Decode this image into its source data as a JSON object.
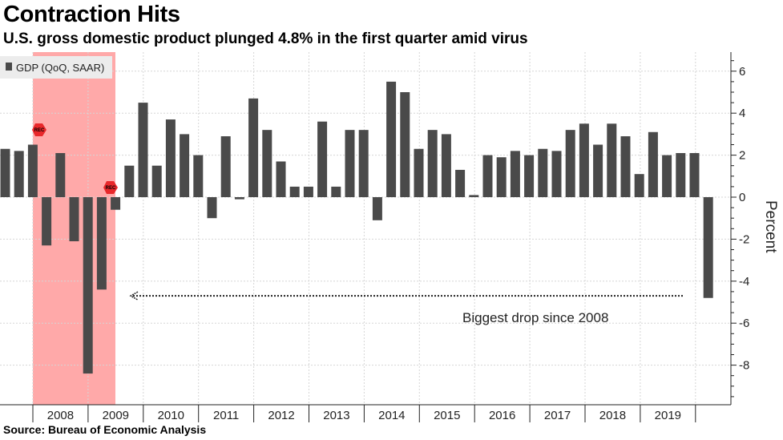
{
  "title": "Contraction Hits",
  "subtitle": "U.S. gross domestic product plunged 4.8% in the first quarter amid virus",
  "source": "Source: Bureau of Economic Analysis",
  "colors": {
    "bar": "#4a4a4a",
    "recession": "#ff9a9a",
    "rec_marker": "#e8282b",
    "grid": "#d6d6d6"
  },
  "chart_data": {
    "type": "bar",
    "title": "Contraction Hits",
    "xlabel": "",
    "ylabel": "Percent",
    "ylim": [
      -9.5,
      7
    ],
    "yticks": [
      6,
      4,
      2,
      0,
      -2,
      -4,
      -6,
      -8
    ],
    "year_labels": [
      "2008",
      "2009",
      "2010",
      "2011",
      "2012",
      "2013",
      "2014",
      "2015",
      "2016",
      "2017",
      "2018",
      "2019"
    ],
    "legend": {
      "label": "GDP (QoQ, SAAR)",
      "position": "top-left"
    },
    "series": [
      {
        "name": "GDP (QoQ, SAAR)",
        "categories": [
          "2007Q1",
          "2007Q2",
          "2007Q3",
          "2008Q1",
          "2008Q2",
          "2008Q3",
          "2008Q4",
          "2009Q1",
          "2009Q2",
          "2009Q3",
          "2009Q4",
          "2010Q1",
          "2010Q2",
          "2010Q3",
          "2010Q4",
          "2011Q1",
          "2011Q2",
          "2011Q3",
          "2011Q4",
          "2012Q1",
          "2012Q2",
          "2012Q3",
          "2012Q4",
          "2013Q1",
          "2013Q2",
          "2013Q3",
          "2013Q4",
          "2014Q1",
          "2014Q2",
          "2014Q3",
          "2014Q4",
          "2015Q1",
          "2015Q2",
          "2015Q3",
          "2015Q4",
          "2016Q1",
          "2016Q2",
          "2016Q3",
          "2016Q4",
          "2017Q1",
          "2017Q2",
          "2017Q3",
          "2017Q4",
          "2018Q1",
          "2018Q2",
          "2018Q3",
          "2018Q4",
          "2019Q1",
          "2019Q2",
          "2019Q3",
          "2019Q4",
          "2020Q1"
        ],
        "values": [
          2.3,
          2.2,
          2.5,
          -2.3,
          2.1,
          -2.1,
          -8.4,
          -4.4,
          -0.6,
          1.5,
          4.5,
          1.5,
          3.7,
          3.0,
          2.0,
          -1.0,
          2.9,
          -0.1,
          4.7,
          3.2,
          1.7,
          0.5,
          0.5,
          3.6,
          0.5,
          3.2,
          3.2,
          -1.1,
          5.5,
          5.0,
          2.3,
          3.2,
          3.0,
          1.3,
          0.1,
          2.0,
          1.9,
          2.2,
          2.0,
          2.3,
          2.2,
          3.2,
          3.5,
          2.5,
          3.5,
          2.9,
          1.1,
          3.1,
          2.0,
          2.1,
          2.1,
          -4.8
        ]
      }
    ],
    "recession": {
      "start": "Dec 2007",
      "end": "Jun 2009",
      "marker_label": "REC"
    },
    "annotation": {
      "text": "Biggest drop since 2008",
      "arrow_y": -4.7
    }
  }
}
